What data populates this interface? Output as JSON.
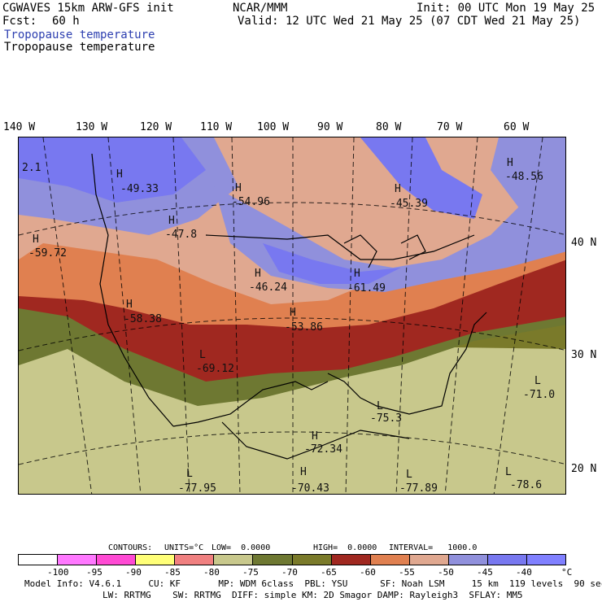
{
  "header": {
    "model": "CGWAVES 15km ARW-GFS init",
    "fcst_label": "Fcst:",
    "fcst_value": "60 h",
    "org": "NCAR/MMM",
    "init": "Init: 00 UTC Mon 19 May 25",
    "valid": "Valid: 12 UTC Wed 21 May 25 (07 CDT Wed 21 May 25)",
    "field_blue": "Tropopause temperature",
    "field_black": "Tropopause temperature"
  },
  "longitudes": [
    "140 W",
    "130 W",
    "120 W",
    "110 W",
    "100 W",
    "90 W",
    "80 W",
    "70 W",
    "60 W"
  ],
  "latitudes": [
    "40 N",
    "30 N",
    "20 N"
  ],
  "corner_value": "2.1",
  "extrema": [
    {
      "letter": "H",
      "value": "-49.33"
    },
    {
      "letter": "H",
      "value": "-54.96"
    },
    {
      "letter": "H",
      "value": "-45.39"
    },
    {
      "letter": "H",
      "value": "-48.56"
    },
    {
      "letter": "H",
      "value": "-47.8"
    },
    {
      "letter": "H",
      "value": "-59.72"
    },
    {
      "letter": "H",
      "value": "-46.24"
    },
    {
      "letter": "H",
      "value": "-61.49"
    },
    {
      "letter": "H",
      "value": "-58.38"
    },
    {
      "letter": "H",
      "value": "-53.86"
    },
    {
      "letter": "L",
      "value": "-69.12"
    },
    {
      "letter": "L",
      "value": "-71.0"
    },
    {
      "letter": "L",
      "value": "-75.3"
    },
    {
      "letter": "H",
      "value": "-72.34"
    },
    {
      "letter": "H",
      "value": "-70.43"
    },
    {
      "letter": "L",
      "value": "-77.95"
    },
    {
      "letter": "L",
      "value": "-77.89"
    },
    {
      "letter": "L",
      "value": "-78.6"
    }
  ],
  "contours": {
    "label": "CONTOURS:",
    "units": "UNITS=°C",
    "low": "LOW=  0.0000",
    "high": "HIGH=  0.0000",
    "interval": "INTERVAL=   1000.0"
  },
  "colorbar": {
    "colors": [
      "#ffffff",
      "#ff78ff",
      "#ff4ad4",
      "#ffff78",
      "#f08080",
      "#c8c88c",
      "#6e7832",
      "#7a7a2a",
      "#a02820",
      "#e08050",
      "#e0a890",
      "#9090dc",
      "#7878f0",
      "#8080ff"
    ],
    "labels": [
      "-100",
      "-95",
      "-90",
      "-85",
      "-80",
      "-75",
      "-70",
      "-65",
      "-60",
      "-55",
      "-50",
      "-45",
      "-40"
    ],
    "unit": "°C"
  },
  "footer": {
    "line1": "Model Info: V4.6.1     CU: KF       MP: WDM 6class  PBL: YSU      SF: Noah LSM     15 km  119 levels  90 sec",
    "line2": "LW: RRTMG    SW: RRTMG  DIFF: simple KM: 2D Smagor DAMP: Rayleigh3  SFLAY: MM5"
  }
}
